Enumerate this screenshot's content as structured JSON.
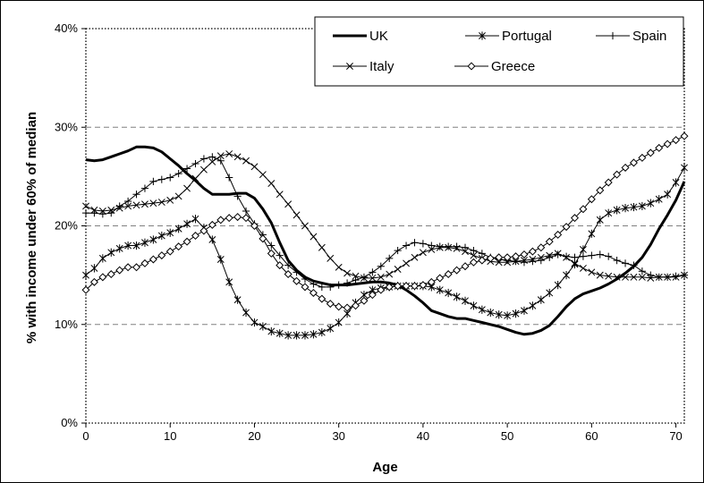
{
  "chart_data": {
    "type": "line",
    "title": "",
    "xlabel": "Age",
    "ylabel": "% with income under 60% of median",
    "xlim": [
      0,
      71
    ],
    "ylim": [
      0,
      40
    ],
    "x_ticks": [
      0,
      10,
      20,
      30,
      40,
      50,
      60,
      70
    ],
    "x_tick_labels": [
      "0",
      "10",
      "20",
      "30",
      "40",
      "50",
      "60",
      "70"
    ],
    "y_ticks": [
      0,
      10,
      20,
      30,
      40
    ],
    "y_tick_labels": [
      "0%",
      "10%",
      "20%",
      "30%",
      "40%"
    ],
    "grid": "horizontal dashed",
    "legend_position": "top-right",
    "series": [
      {
        "name": "UK",
        "style": "thick-solid",
        "x": [
          0,
          1,
          2,
          3,
          4,
          5,
          6,
          7,
          8,
          9,
          10,
          11,
          12,
          13,
          14,
          15,
          16,
          17,
          18,
          19,
          20,
          21,
          22,
          23,
          24,
          25,
          26,
          27,
          28,
          29,
          30,
          31,
          32,
          33,
          34,
          35,
          36,
          37,
          38,
          39,
          40,
          41,
          42,
          43,
          44,
          45,
          46,
          47,
          48,
          49,
          50,
          51,
          52,
          53,
          54,
          55,
          56,
          57,
          58,
          59,
          60,
          61,
          62,
          63,
          64,
          65,
          66,
          67,
          68,
          69,
          70,
          71
        ],
        "values": [
          26.7,
          26.6,
          26.7,
          27.0,
          27.3,
          27.6,
          28.0,
          28.0,
          27.9,
          27.5,
          26.8,
          26.1,
          25.3,
          24.6,
          23.8,
          23.2,
          23.2,
          23.2,
          23.3,
          23.3,
          22.8,
          21.7,
          20.3,
          18.3,
          16.5,
          15.5,
          14.8,
          14.4,
          14.2,
          14.0,
          14.0,
          14.0,
          14.1,
          14.2,
          14.3,
          14.3,
          14.2,
          14.0,
          13.5,
          12.9,
          12.2,
          11.4,
          11.1,
          10.8,
          10.6,
          10.6,
          10.4,
          10.2,
          10.0,
          9.8,
          9.5,
          9.2,
          9.0,
          9.1,
          9.4,
          9.9,
          10.8,
          11.8,
          12.6,
          13.1,
          13.4,
          13.7,
          14.1,
          14.6,
          15.2,
          15.9,
          16.8,
          18.1,
          19.7,
          21.1,
          22.6,
          24.5
        ]
      },
      {
        "name": "Portugal",
        "style": "asterisk",
        "x": [
          0,
          1,
          2,
          3,
          4,
          5,
          6,
          7,
          8,
          9,
          10,
          11,
          12,
          13,
          14,
          15,
          16,
          17,
          18,
          19,
          20,
          21,
          22,
          23,
          24,
          25,
          26,
          27,
          28,
          29,
          30,
          31,
          32,
          33,
          34,
          35,
          36,
          37,
          38,
          39,
          40,
          41,
          42,
          43,
          44,
          45,
          46,
          47,
          48,
          49,
          50,
          51,
          52,
          53,
          54,
          55,
          56,
          57,
          58,
          59,
          60,
          61,
          62,
          63,
          64,
          65,
          66,
          67,
          68,
          69,
          70,
          71
        ],
        "values": [
          15.0,
          15.7,
          16.7,
          17.3,
          17.7,
          18.0,
          18.0,
          18.3,
          18.6,
          19.0,
          19.3,
          19.7,
          20.2,
          20.7,
          19.8,
          18.6,
          16.6,
          14.3,
          12.5,
          11.2,
          10.2,
          9.8,
          9.3,
          9.1,
          8.9,
          8.9,
          8.9,
          9.0,
          9.2,
          9.6,
          10.2,
          11.1,
          12.2,
          13.0,
          13.5,
          13.7,
          13.8,
          13.9,
          13.9,
          13.9,
          13.9,
          13.8,
          13.5,
          13.2,
          12.8,
          12.4,
          11.9,
          11.5,
          11.2,
          11.0,
          10.9,
          11.1,
          11.4,
          11.9,
          12.5,
          13.2,
          14.0,
          15.0,
          16.1,
          17.6,
          19.2,
          20.6,
          21.3,
          21.6,
          21.8,
          21.9,
          22.0,
          22.3,
          22.7,
          23.2,
          24.4,
          25.9
        ]
      },
      {
        "name": "Spain",
        "style": "plus",
        "x": [
          0,
          1,
          2,
          3,
          4,
          5,
          6,
          7,
          8,
          9,
          10,
          11,
          12,
          13,
          14,
          15,
          16,
          17,
          18,
          19,
          20,
          21,
          22,
          23,
          24,
          25,
          26,
          27,
          28,
          29,
          30,
          31,
          32,
          33,
          34,
          35,
          36,
          37,
          38,
          39,
          40,
          41,
          42,
          43,
          44,
          45,
          46,
          47,
          48,
          49,
          50,
          51,
          52,
          53,
          54,
          55,
          56,
          57,
          58,
          59,
          60,
          61,
          62,
          63,
          64,
          65,
          66,
          67,
          68,
          69,
          70,
          71
        ],
        "values": [
          21.3,
          21.3,
          21.2,
          21.3,
          22.0,
          22.5,
          23.2,
          23.8,
          24.5,
          24.7,
          24.9,
          25.3,
          25.8,
          26.3,
          26.8,
          27.0,
          26.6,
          24.9,
          23.0,
          21.5,
          20.2,
          19.1,
          18.0,
          17.0,
          16.0,
          15.3,
          14.6,
          14.1,
          13.8,
          13.8,
          14.0,
          14.2,
          14.5,
          14.8,
          15.3,
          15.9,
          16.7,
          17.5,
          18.0,
          18.3,
          18.2,
          18.0,
          17.9,
          17.9,
          17.9,
          17.8,
          17.5,
          17.2,
          16.8,
          16.6,
          16.5,
          16.4,
          16.3,
          16.4,
          16.5,
          16.8,
          17.1,
          16.9,
          16.8,
          16.9,
          17.0,
          17.1,
          16.9,
          16.5,
          16.2,
          16.0,
          15.4,
          15.0,
          14.8,
          14.8,
          14.9,
          15.0
        ]
      },
      {
        "name": "Italy",
        "style": "cross",
        "x": [
          0,
          1,
          2,
          3,
          4,
          5,
          6,
          7,
          8,
          9,
          10,
          11,
          12,
          13,
          14,
          15,
          16,
          17,
          18,
          19,
          20,
          21,
          22,
          23,
          24,
          25,
          26,
          27,
          28,
          29,
          30,
          31,
          32,
          33,
          34,
          35,
          36,
          37,
          38,
          39,
          40,
          41,
          42,
          43,
          44,
          45,
          46,
          47,
          48,
          49,
          50,
          51,
          52,
          53,
          54,
          55,
          56,
          57,
          58,
          59,
          60,
          61,
          62,
          63,
          64,
          65,
          66,
          67,
          68,
          69,
          70,
          71
        ],
        "values": [
          22.0,
          21.6,
          21.5,
          21.6,
          21.8,
          22.0,
          22.1,
          22.2,
          22.3,
          22.4,
          22.6,
          23.0,
          23.8,
          24.8,
          25.7,
          26.5,
          27.1,
          27.3,
          27.0,
          26.6,
          26.0,
          25.2,
          24.3,
          23.2,
          22.2,
          21.1,
          20.0,
          18.9,
          17.8,
          16.7,
          15.8,
          15.2,
          14.9,
          14.7,
          14.7,
          14.8,
          15.1,
          15.6,
          16.2,
          16.8,
          17.3,
          17.6,
          17.8,
          17.8,
          17.7,
          17.4,
          17.0,
          16.7,
          16.4,
          16.3,
          16.3,
          16.4,
          16.5,
          16.6,
          16.8,
          17.0,
          17.2,
          16.8,
          16.2,
          15.7,
          15.3,
          15.0,
          14.9,
          14.8,
          14.8,
          14.8,
          14.8,
          14.7,
          14.8,
          14.8,
          14.8,
          15.0
        ]
      },
      {
        "name": "Greece",
        "style": "diamond",
        "x": [
          0,
          1,
          2,
          3,
          4,
          5,
          6,
          7,
          8,
          9,
          10,
          11,
          12,
          13,
          14,
          15,
          16,
          17,
          18,
          19,
          20,
          21,
          22,
          23,
          24,
          25,
          26,
          27,
          28,
          29,
          30,
          31,
          32,
          33,
          34,
          35,
          36,
          37,
          38,
          39,
          40,
          41,
          42,
          43,
          44,
          45,
          46,
          47,
          48,
          49,
          50,
          51,
          52,
          53,
          54,
          55,
          56,
          57,
          58,
          59,
          60,
          61,
          62,
          63,
          64,
          65,
          66,
          67,
          68,
          69,
          70,
          71
        ],
        "values": [
          13.5,
          14.3,
          14.8,
          15.1,
          15.5,
          15.8,
          15.8,
          16.2,
          16.6,
          17.0,
          17.4,
          17.9,
          18.4,
          19.0,
          19.5,
          20.1,
          20.6,
          20.8,
          20.9,
          20.8,
          20.0,
          18.7,
          17.2,
          16.0,
          15.1,
          14.4,
          13.8,
          13.2,
          12.6,
          12.1,
          11.8,
          11.7,
          11.9,
          12.4,
          13.0,
          13.5,
          13.8,
          13.9,
          13.9,
          13.9,
          14.0,
          14.3,
          14.7,
          15.1,
          15.5,
          15.9,
          16.3,
          16.5,
          16.7,
          16.8,
          16.8,
          16.9,
          17.1,
          17.4,
          17.8,
          18.4,
          19.1,
          19.9,
          20.8,
          21.7,
          22.7,
          23.6,
          24.4,
          25.2,
          25.9,
          26.4,
          26.9,
          27.4,
          27.9,
          28.3,
          28.7,
          29.1
        ]
      }
    ]
  }
}
